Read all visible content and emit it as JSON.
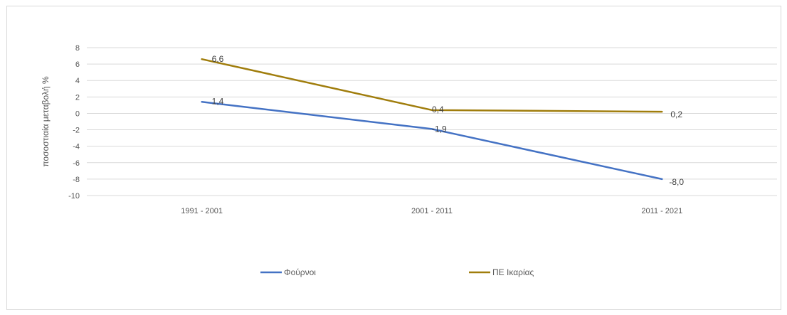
{
  "chart_data": {
    "type": "line",
    "categories": [
      "1991 - 2001",
      "2001 - 2011",
      "2011 - 2021"
    ],
    "series": [
      {
        "name": "Φούρνοι",
        "values": [
          1.4,
          -1.9,
          -8.0
        ],
        "labels": [
          "1,4",
          "-1,9",
          "-8,0"
        ],
        "color": "#4472c4"
      },
      {
        "name": "ΠΕ Ικαρίας",
        "values": [
          6.6,
          0.4,
          0.2
        ],
        "labels": [
          "6,6",
          "0,4",
          "0,2"
        ],
        "color": "#a07d0c"
      }
    ],
    "ylabel": "ποσοστιαία μεταβολή %",
    "ylim": [
      -10,
      8
    ],
    "yticks": [
      8,
      6,
      4,
      2,
      0,
      -2,
      -4,
      -6,
      -8,
      -10
    ],
    "grid": true,
    "legend_position": "bottom"
  }
}
